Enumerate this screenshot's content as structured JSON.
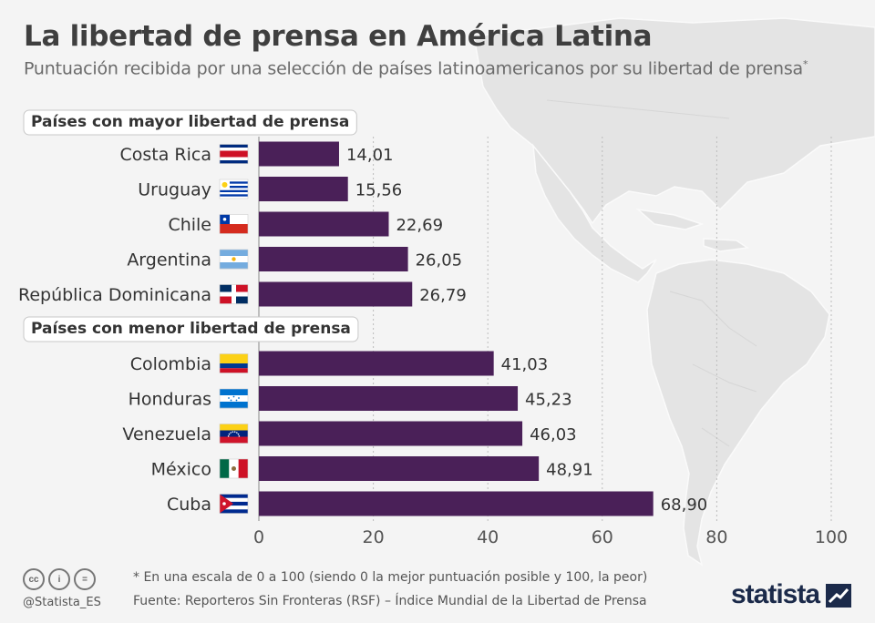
{
  "header": {
    "title": "La libertad de prensa en América Latina",
    "subtitle": "Puntuación recibida por una selección de países latinoamericanos por su libertad de prensa",
    "subtitle_mark": "*"
  },
  "chart_data": {
    "type": "bar",
    "orientation": "horizontal",
    "groups": [
      {
        "label": "Países con mayor libertad de prensa",
        "items": [
          {
            "country": "Costa Rica",
            "value": 14.01,
            "value_label": "14,01",
            "flag": "costa-rica"
          },
          {
            "country": "Uruguay",
            "value": 15.56,
            "value_label": "15,56",
            "flag": "uruguay"
          },
          {
            "country": "Chile",
            "value": 22.69,
            "value_label": "22,69",
            "flag": "chile"
          },
          {
            "country": "Argentina",
            "value": 26.05,
            "value_label": "26,05",
            "flag": "argentina"
          },
          {
            "country": "República Dominicana",
            "value": 26.79,
            "value_label": "26,79",
            "flag": "dominican-republic"
          }
        ]
      },
      {
        "label": "Países con menor libertad de prensa",
        "items": [
          {
            "country": "Colombia",
            "value": 41.03,
            "value_label": "41,03",
            "flag": "colombia"
          },
          {
            "country": "Honduras",
            "value": 45.23,
            "value_label": "45,23",
            "flag": "honduras"
          },
          {
            "country": "Venezuela",
            "value": 46.03,
            "value_label": "46,03",
            "flag": "venezuela"
          },
          {
            "country": "México",
            "value": 48.91,
            "value_label": "48,91",
            "flag": "mexico"
          },
          {
            "country": "Cuba",
            "value": 68.9,
            "value_label": "68,90",
            "flag": "cuba"
          }
        ]
      }
    ],
    "xlim": [
      0,
      100
    ],
    "xticks": [
      0,
      20,
      40,
      60,
      80,
      100
    ],
    "xtick_labels": [
      "0",
      "20",
      "40",
      "60",
      "80",
      "100"
    ],
    "grid": true,
    "bar_color": "#4a2058"
  },
  "footer": {
    "note": "* En una escala de 0 a 100 (siendo 0 la mejor puntuación posible y 100, la peor)",
    "source": "Fuente: Reporteros Sin Fronteras (RSF) – Índice Mundial de la Libertad de Prensa",
    "handle": "@Statista_ES",
    "brand": "statista",
    "license_icons": [
      "cc-icon",
      "by-icon",
      "nd-icon"
    ],
    "license_text": [
      "cc",
      "i",
      "="
    ]
  }
}
